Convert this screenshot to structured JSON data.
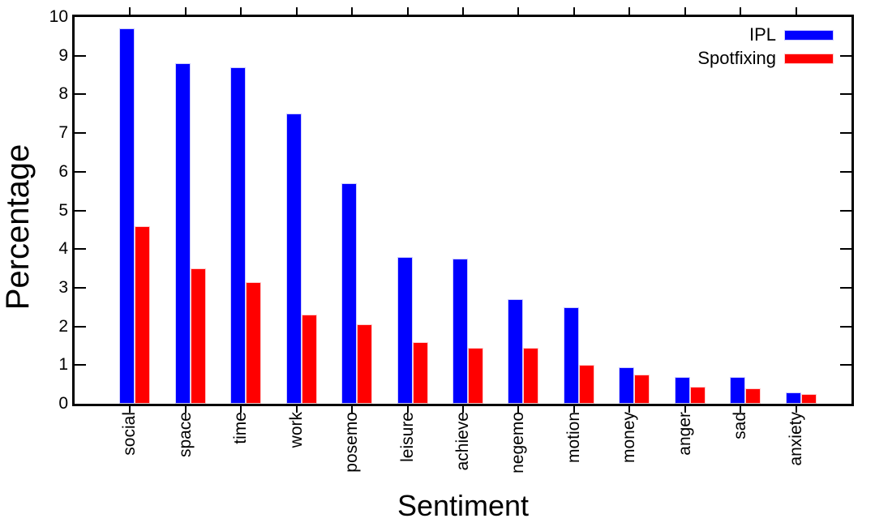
{
  "chart_data": {
    "type": "bar",
    "title": "",
    "xlabel": "Sentiment",
    "ylabel": "Percentage",
    "ylim": [
      0,
      10
    ],
    "ytick_step": 1,
    "grid": false,
    "legend_position": "top-right-inside",
    "categories": [
      "social",
      "space",
      "time",
      "work",
      "posemo",
      "leisure",
      "achieve",
      "negemo",
      "motion",
      "money",
      "anger",
      "sad",
      "anxiety"
    ],
    "series": [
      {
        "name": "IPL",
        "color": "#0000ff",
        "values": [
          9.7,
          8.8,
          8.7,
          7.5,
          5.7,
          3.8,
          3.75,
          2.7,
          2.5,
          0.95,
          0.7,
          0.7,
          0.3
        ]
      },
      {
        "name": "Spotfixing",
        "color": "#ff0000",
        "values": [
          4.6,
          3.5,
          3.15,
          2.3,
          2.05,
          1.6,
          1.45,
          1.45,
          1.0,
          0.75,
          0.45,
          0.4,
          0.25
        ]
      }
    ]
  }
}
